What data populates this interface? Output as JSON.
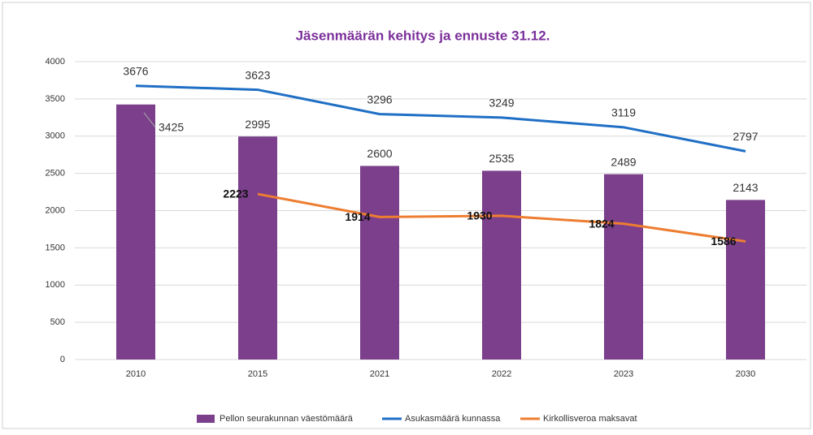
{
  "chart_data": {
    "type": "combo",
    "title": "Jäsenmäärän kehitys ja ennuste 31.12.",
    "categories": [
      "2010",
      "2015",
      "2021",
      "2022",
      "2023",
      "2030"
    ],
    "series": [
      {
        "name": "Pellon seurakunnan väestömäärä",
        "type": "bar",
        "color": "#7b3f8c",
        "values": [
          3425,
          2995,
          2600,
          2535,
          2489,
          2143
        ]
      },
      {
        "name": "Asukasmäärä kunnassa",
        "type": "line",
        "color": "#1f6fc5",
        "values": [
          3676,
          3623,
          3296,
          3249,
          3119,
          2797
        ]
      },
      {
        "name": "Kirkollisveroa maksavat",
        "type": "line",
        "color": "#ed7d31",
        "values": [
          null,
          2223,
          1914,
          1930,
          1824,
          1586
        ]
      }
    ],
    "ylim": [
      0,
      4000
    ],
    "yticks": [
      0,
      500,
      1000,
      1500,
      2000,
      2500,
      3000,
      3500,
      4000
    ],
    "grid": true,
    "legend": "bottom"
  }
}
